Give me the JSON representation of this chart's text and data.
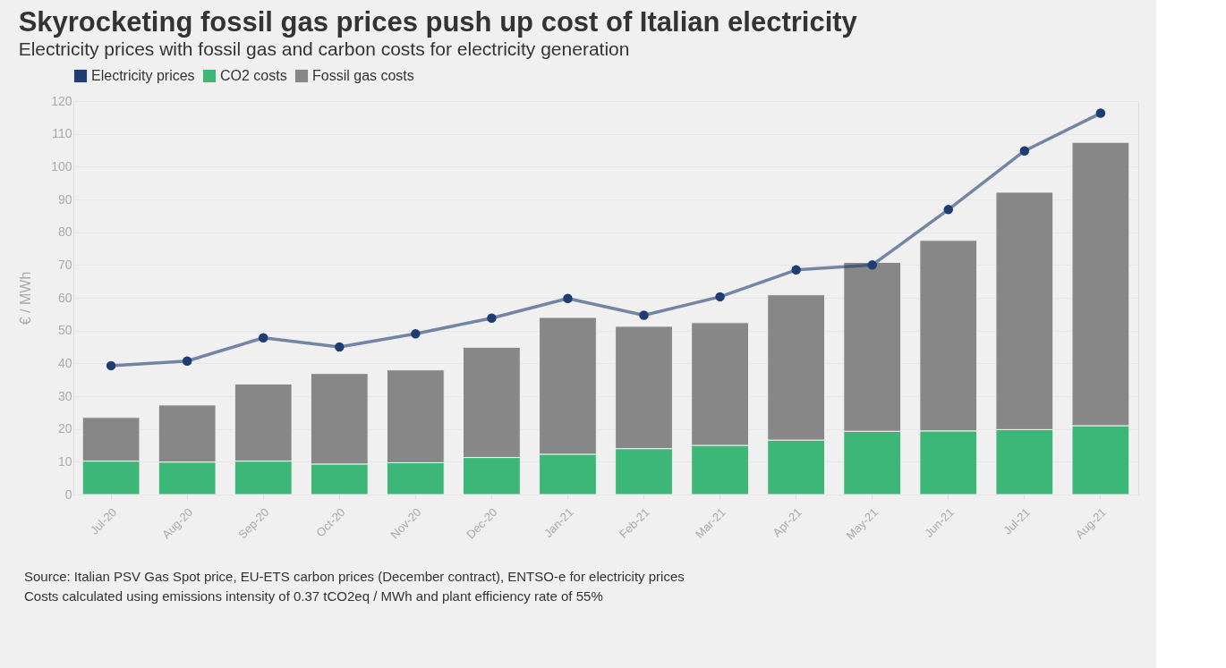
{
  "chart_data": {
    "type": "bar",
    "stacked": true,
    "title": "Skyrocketing fossil gas prices push up cost of Italian electricity",
    "subtitle": "Electricity prices with fossil gas and carbon costs for electricity generation",
    "ylabel": "€ / MWh",
    "categories": [
      "Jul-20",
      "Aug-20",
      "Sep-20",
      "Oct-20",
      "Nov-20",
      "Dec-20",
      "Jan-21",
      "Feb-21",
      "Mar-21",
      "Apr-21",
      "May-21",
      "Jun-21",
      "Jul-21",
      "Aug-21"
    ],
    "series": [
      {
        "name": "Electricity prices",
        "type": "line",
        "color": "#1f3d73",
        "values": [
          39.3,
          40.7,
          47.8,
          45.0,
          49.0,
          53.8,
          59.8,
          54.7,
          60.3,
          68.5,
          70.0,
          86.9,
          104.8,
          116.3
        ]
      },
      {
        "name": "CO2 costs",
        "type": "bar",
        "color": "#3db778",
        "values": [
          10.2,
          9.9,
          10.2,
          9.3,
          9.7,
          11.3,
          12.3,
          14.0,
          15.0,
          16.6,
          19.3,
          19.4,
          19.8,
          21.0
        ]
      },
      {
        "name": "Fossil gas costs",
        "type": "bar",
        "color": "#878787",
        "values": [
          13.3,
          17.4,
          23.5,
          27.6,
          28.3,
          33.6,
          41.7,
          37.3,
          37.4,
          44.3,
          51.5,
          58.1,
          72.4,
          86.4
        ]
      }
    ],
    "ylim": [
      0,
      120
    ],
    "yticks": [
      0,
      10,
      20,
      30,
      40,
      50,
      60,
      70,
      80,
      90,
      100,
      110,
      120
    ],
    "grid": "y",
    "legend": "top left",
    "marker": "circle",
    "line_style": "solid",
    "annotations": [
      "Source: Italian PSV Gas Spot price, EU-ETS carbon prices (December contract), ENTSO-e for electricity prices",
      "Costs calculated using emissions intensity of 0.37 tCO2eq / MWh and plant efficiency rate of 55%"
    ]
  }
}
